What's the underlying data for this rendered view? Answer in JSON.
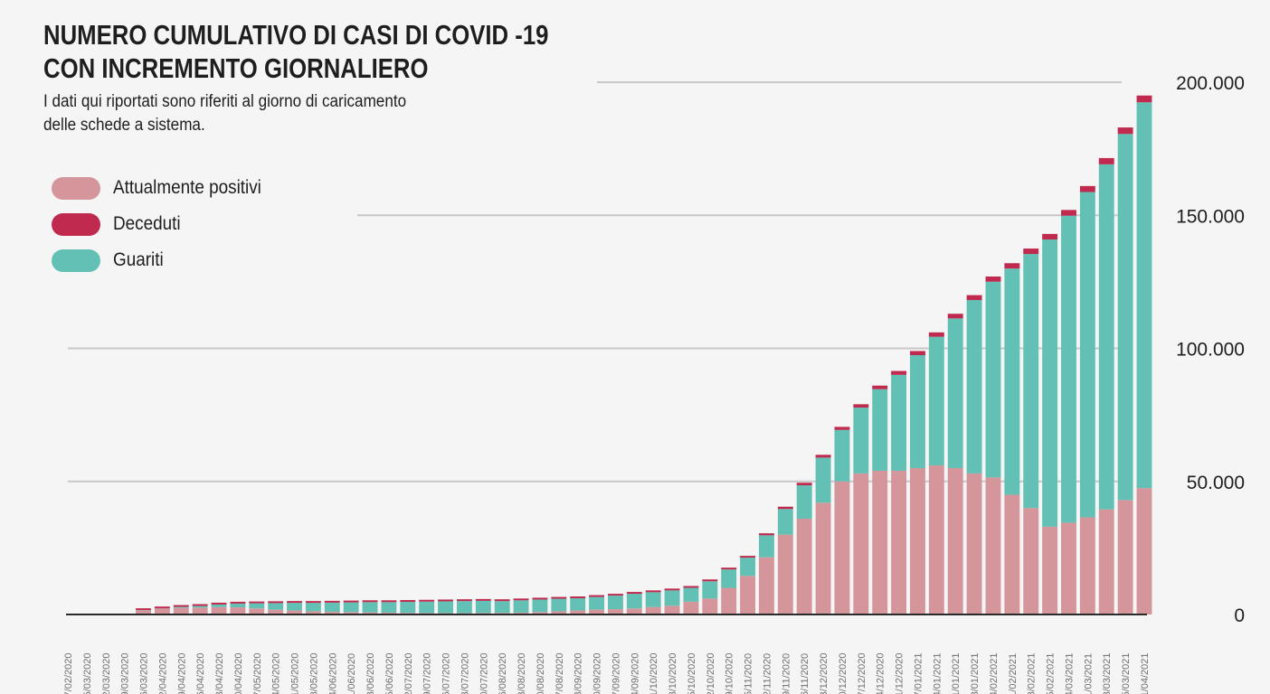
{
  "title_lines": [
    "NUMERO CUMULATIVO DI CASI DI COVID -19",
    "CON INCREMENTO GIORNALIERO"
  ],
  "subtitle_lines": [
    "I dati qui riportati sono riferiti al giorno di caricamento",
    "delle schede a sistema."
  ],
  "colors": {
    "background": "#f5f5f5",
    "positivi": "#d4969b",
    "deceduti": "#bf2a4e",
    "guariti": "#62c0b4",
    "grid": "#c8c8c8"
  },
  "chart_data": {
    "type": "bar",
    "stacked": true,
    "title": "NUMERO CUMULATIVO DI CASI DI COVID -19 CON INCREMENTO GIORNALIERO",
    "ylim": [
      0,
      200000
    ],
    "yticks": [
      0,
      50000,
      100000,
      150000,
      200000
    ],
    "ytick_labels": [
      "0",
      "50.000",
      "100.000",
      "150.000",
      "200.000"
    ],
    "grid": true,
    "legend_position": "top-left",
    "categories": [
      "27/02/2020",
      "05/03/2020",
      "12/03/2020",
      "19/03/2020",
      "26/03/2020",
      "02/04/2020",
      "09/04/2020",
      "16/04/2020",
      "23/04/2020",
      "30/04/2020",
      "07/05/2020",
      "14/05/2020",
      "21/05/2020",
      "28/05/2020",
      "04/06/2020",
      "11/06/2020",
      "18/06/2020",
      "25/06/2020",
      "02/07/2020",
      "09/07/2020",
      "16/07/2020",
      "23/07/2020",
      "30/07/2020",
      "06/08/2020",
      "13/08/2020",
      "20/08/2020",
      "27/08/2020",
      "03/09/2020",
      "10/09/2020",
      "17/09/2020",
      "24/09/2020",
      "01/10/2020",
      "08/10/2020",
      "15/10/2020",
      "22/10/2020",
      "29/10/2020",
      "05/11/2020",
      "12/11/2020",
      "19/11/2020",
      "26/11/2020",
      "03/12/2020",
      "10/12/2020",
      "17/12/2020",
      "24/12/2020",
      "31/12/2020",
      "07/01/2021",
      "14/01/2021",
      "21/01/2021",
      "28/01/2021",
      "04/02/2021",
      "11/02/2021",
      "18/02/2021",
      "25/02/2021",
      "04/03/2021",
      "11/03/2021",
      "18/03/2021",
      "25/03/2021",
      "01/04/2021"
    ],
    "series": [
      {
        "name": "Attualmente positivi",
        "values": [
          0,
          0,
          0,
          150,
          1500,
          2200,
          2500,
          2600,
          2800,
          2700,
          2300,
          1800,
          1500,
          1200,
          1000,
          900,
          800,
          700,
          600,
          550,
          500,
          500,
          550,
          600,
          700,
          900,
          1200,
          1500,
          1800,
          2000,
          2300,
          2800,
          3300,
          4800,
          6000,
          10000,
          14500,
          21500,
          30000,
          36000,
          42000,
          50000,
          53000,
          54000,
          54000,
          55000,
          56000,
          55000,
          53000,
          51500,
          45000,
          40000,
          33000,
          34500,
          36500,
          39500,
          43000,
          47500
        ]
      },
      {
        "name": "Deceduti",
        "values": [
          0,
          0,
          0,
          0,
          50,
          100,
          150,
          200,
          250,
          300,
          300,
          320,
          330,
          340,
          350,
          350,
          350,
          350,
          360,
          360,
          360,
          360,
          370,
          370,
          380,
          380,
          390,
          400,
          400,
          410,
          420,
          430,
          450,
          480,
          520,
          580,
          650,
          750,
          850,
          950,
          1050,
          1150,
          1250,
          1350,
          1450,
          1550,
          1650,
          1750,
          1850,
          1950,
          2000,
          2050,
          2100,
          2150,
          2250,
          2350,
          2450,
          2550
        ]
      },
      {
        "name": "Guariti",
        "values": [
          0,
          0,
          0,
          50,
          150,
          100,
          350,
          600,
          950,
          1400,
          1900,
          2480,
          2870,
          3160,
          3450,
          3650,
          3850,
          3950,
          4140,
          4290,
          4440,
          4540,
          4580,
          4430,
          4620,
          4720,
          4710,
          4600,
          4800,
          5090,
          5480,
          5570,
          5750,
          5220,
          6480,
          6920,
          6850,
          8250,
          9650,
          12550,
          16950,
          19350,
          24750,
          30650,
          36050,
          42450,
          48350,
          56250,
          65150,
          73550,
          85000,
          95450,
          107900,
          115350,
          122250,
          129650,
          137550,
          144950
        ]
      }
    ]
  }
}
